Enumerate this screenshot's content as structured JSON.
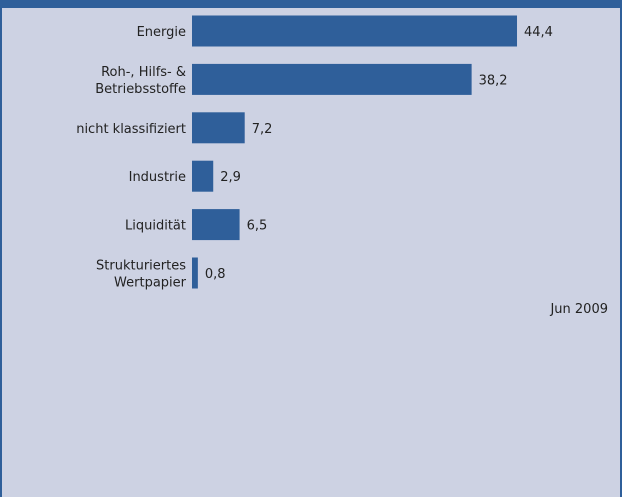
{
  "chart_data": {
    "type": "bar",
    "orientation": "horizontal",
    "categories": [
      [
        "Energie"
      ],
      [
        "Roh-, Hilfs- &",
        "Betriebsstoffe"
      ],
      [
        "nicht klassifiziert"
      ],
      [
        "Industrie"
      ],
      [
        "Liquidität"
      ],
      [
        "Strukturiertes",
        "Wertpapier"
      ]
    ],
    "values": [
      44.4,
      38.2,
      7.2,
      2.9,
      6.5,
      0.8
    ],
    "value_labels": [
      "44,4",
      "38,2",
      "7,2",
      "2,9",
      "6,5",
      "0,8"
    ],
    "date_label": "Jun 2009",
    "xlim": [
      0,
      50
    ],
    "grid": false,
    "colors": {
      "bar": "#2f5f9a",
      "background": "#cdd2e3",
      "frame": "#2f5f9a"
    }
  }
}
